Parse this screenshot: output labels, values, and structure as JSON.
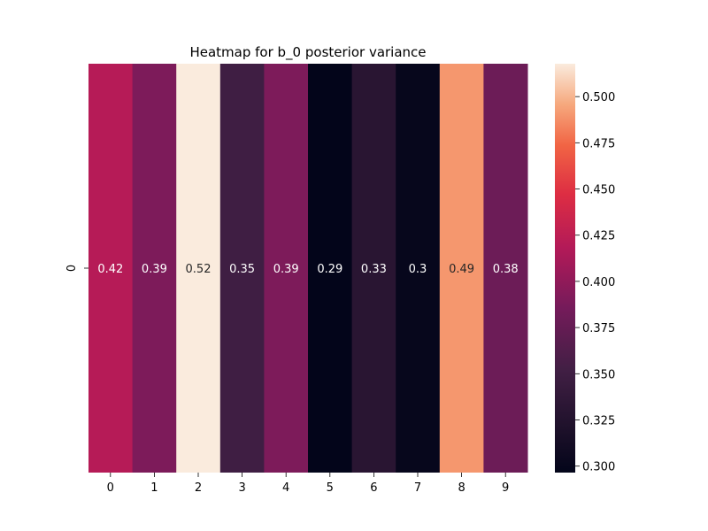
{
  "chart_data": {
    "type": "heatmap",
    "title": "Heatmap for b_0 posterior variance",
    "xlabel": "",
    "ylabel": "",
    "x_categories": [
      "0",
      "1",
      "2",
      "3",
      "4",
      "5",
      "6",
      "7",
      "8",
      "9"
    ],
    "y_categories": [
      "0"
    ],
    "values": [
      [
        0.42,
        0.39,
        0.52,
        0.35,
        0.39,
        0.29,
        0.33,
        0.3,
        0.49,
        0.38
      ]
    ],
    "annotations": [
      "0.42",
      "0.39",
      "0.52",
      "0.35",
      "0.39",
      "0.29",
      "0.33",
      "0.3",
      "0.49",
      "0.38"
    ],
    "colorbar": {
      "range": [
        0.2965,
        0.5178
      ],
      "ticks": [
        "0.300",
        "0.325",
        "0.350",
        "0.375",
        "0.400",
        "0.425",
        "0.450",
        "0.475",
        "0.500"
      ],
      "colormap": "rocket"
    }
  }
}
